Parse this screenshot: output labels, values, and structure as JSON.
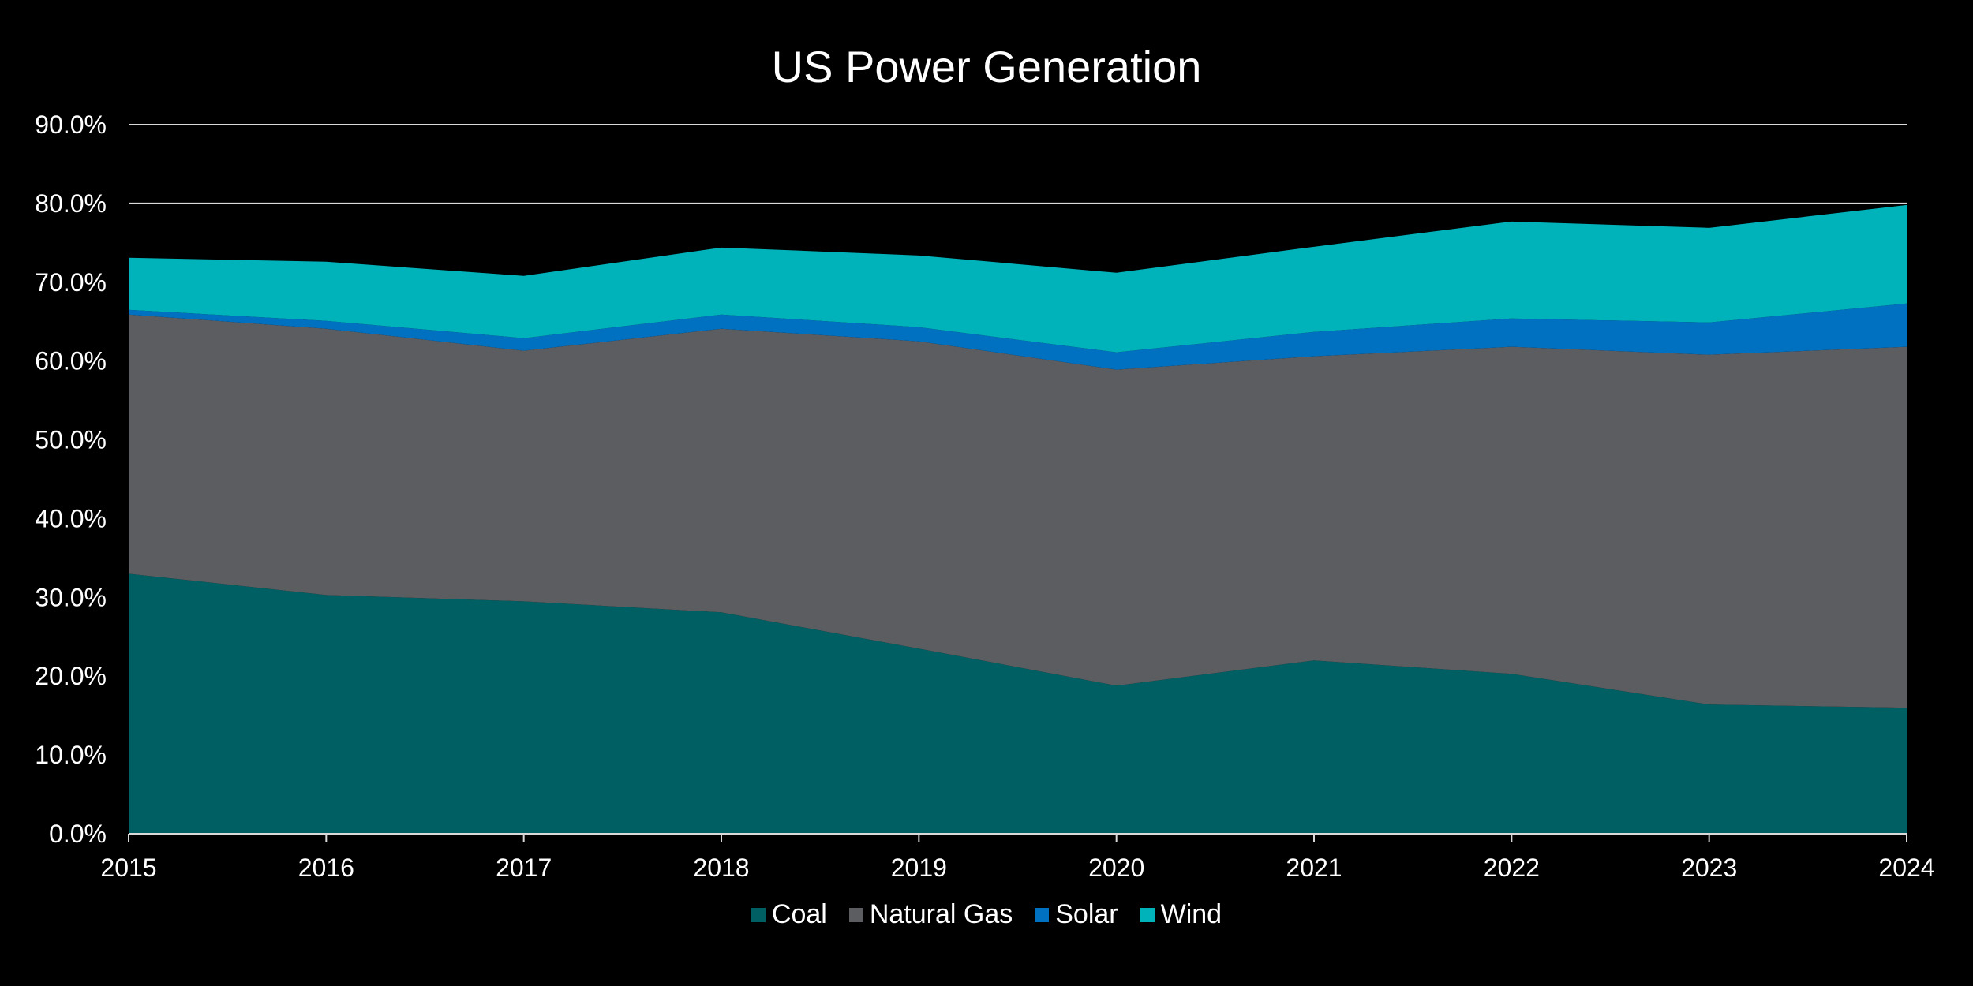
{
  "chart_data": {
    "type": "area",
    "stacked": true,
    "title": "US Power Generation",
    "xlabel": "",
    "ylabel": "",
    "categories": [
      "2015",
      "2016",
      "2017",
      "2018",
      "2019",
      "2020",
      "2021",
      "2022",
      "2023",
      "2024"
    ],
    "ylim": [
      0,
      90
    ],
    "yticks": [
      "0.0%",
      "10.0%",
      "20.0%",
      "30.0%",
      "40.0%",
      "50.0%",
      "60.0%",
      "70.0%",
      "80.0%",
      "90.0%"
    ],
    "grid": true,
    "legend": "bottom",
    "series": [
      {
        "name": "Coal",
        "color": "#005f63",
        "values": [
          33.0,
          30.3,
          29.5,
          28.1,
          23.5,
          18.8,
          22.0,
          20.3,
          16.4,
          16.0
        ]
      },
      {
        "name": "Natural Gas",
        "color": "#5c5d61",
        "values": [
          32.9,
          33.8,
          31.8,
          36.0,
          39.0,
          40.1,
          38.6,
          41.5,
          44.4,
          45.8
        ]
      },
      {
        "name": "Solar",
        "color": "#0070c0",
        "values": [
          0.6,
          1.0,
          1.6,
          1.8,
          1.8,
          2.2,
          3.1,
          3.6,
          4.1,
          5.5
        ]
      },
      {
        "name": "Wind",
        "color": "#00b3bb",
        "values": [
          6.6,
          7.5,
          7.9,
          8.5,
          9.1,
          10.1,
          10.8,
          12.3,
          12.0,
          12.5
        ]
      }
    ]
  }
}
